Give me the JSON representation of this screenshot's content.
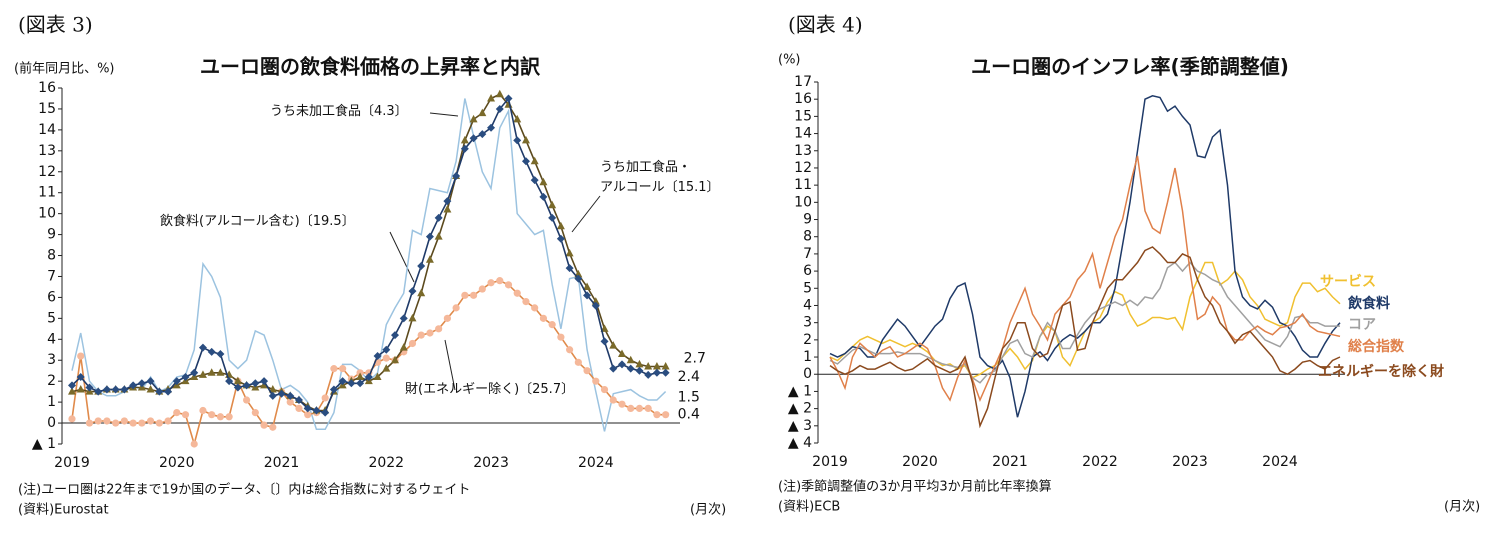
{
  "chart_data": [
    {
      "type": "line",
      "figure_label": "(図表 3)",
      "title": "ユーロ圏の飲食料価格の上昇率と内訳",
      "y_label": "(前年同月比、%)",
      "note": "(注)ユーロ圏は22年まで19か国のデータ、〔〕内は総合指数に対するウェイト",
      "source": "(資料)Eurostat",
      "frequency": "(月次)",
      "categories": [
        "2019",
        null,
        null,
        null,
        null,
        null,
        null,
        null,
        null,
        null,
        null,
        null,
        "2020",
        null,
        null,
        null,
        null,
        null,
        null,
        null,
        null,
        null,
        null,
        null,
        "2021",
        null,
        null,
        null,
        null,
        null,
        null,
        null,
        null,
        null,
        null,
        null,
        "2022",
        null,
        null,
        null,
        null,
        null,
        null,
        null,
        null,
        null,
        null,
        null,
        "2023",
        null,
        null,
        null,
        null,
        null,
        null,
        null,
        null,
        null,
        null,
        null,
        "2024",
        null,
        null,
        null,
        null,
        null,
        null,
        null,
        null
      ],
      "ylim": [
        -1,
        16
      ],
      "yticks": [
        {
          "value": -1,
          "label": "▲ 1"
        },
        0,
        1,
        2,
        3,
        4,
        5,
        6,
        7,
        8,
        9,
        10,
        11,
        12,
        13,
        14,
        15,
        16
      ],
      "grid": false,
      "series": [
        {
          "name": "うち未加工食品〔4.3〕",
          "color": "#9cc3e0",
          "marker": null,
          "show_last_value": true,
          "values": [
            2.5,
            4.3,
            2.0,
            1.5,
            1.3,
            1.3,
            1.5,
            1.8,
            1.6,
            2.2,
            1.5,
            1.7,
            2.2,
            2.3,
            3.5,
            7.6,
            7.0,
            6.0,
            3.0,
            2.6,
            3.0,
            4.4,
            4.2,
            3.0,
            1.6,
            1.8,
            1.5,
            1.0,
            -0.3,
            -0.3,
            0.5,
            2.8,
            2.8,
            2.5,
            2.0,
            2.4,
            4.7,
            5.5,
            6.2,
            9.2,
            9.0,
            11.2,
            11.1,
            11.0,
            12.5,
            15.5,
            13.7,
            12.0,
            11.2,
            14.1,
            14.9,
            10.0,
            9.5,
            9.0,
            9.2,
            6.6,
            4.5,
            6.9,
            7.0,
            3.5,
            1.5,
            -0.4,
            1.4,
            1.5,
            1.6,
            1.3,
            1.1,
            1.1,
            1.5
          ]
        },
        {
          "name": "財(エネルギー除く)〔25.7〕",
          "color": "#e08a4a",
          "marker": "circle",
          "marker_color": "#f5b89a",
          "show_last_value": true,
          "values": [
            0.2,
            3.2,
            0.0,
            0.1,
            0.1,
            0.0,
            0.1,
            0.0,
            0.0,
            0.1,
            0.0,
            0.1,
            0.5,
            0.4,
            -1.0,
            0.6,
            0.4,
            0.3,
            0.3,
            2.0,
            1.1,
            0.5,
            -0.1,
            -0.2,
            1.5,
            1.0,
            0.7,
            0.4,
            0.5,
            1.2,
            2.6,
            2.6,
            2.1,
            2.4,
            2.4,
            2.9,
            3.1,
            3.0,
            3.4,
            3.8,
            4.2,
            4.3,
            4.5,
            5.0,
            5.5,
            6.1,
            6.1,
            6.4,
            6.7,
            6.8,
            6.6,
            6.2,
            5.8,
            5.5,
            5.0,
            4.7,
            4.1,
            3.5,
            2.9,
            2.5,
            2.0,
            1.6,
            1.1,
            0.9,
            0.7,
            0.7,
            0.7,
            0.4,
            0.4
          ]
        },
        {
          "name": "うち加工食品・\nアルコール〔15.1〕",
          "color": "#5c4a1e",
          "marker": "triangle",
          "marker_color": "#7a6a2a",
          "show_last_value": true,
          "values": [
            1.5,
            1.6,
            1.5,
            1.5,
            1.6,
            1.6,
            1.6,
            1.7,
            1.7,
            1.6,
            1.5,
            1.6,
            1.8,
            2.0,
            2.2,
            2.3,
            2.4,
            2.4,
            2.3,
            2.0,
            1.8,
            1.7,
            1.8,
            1.6,
            1.5,
            1.3,
            1.1,
            0.8,
            0.6,
            0.6,
            1.5,
            1.8,
            2.0,
            2.2,
            2.0,
            2.2,
            2.6,
            3.0,
            3.6,
            5.0,
            6.2,
            7.8,
            8.9,
            10.2,
            11.8,
            13.5,
            14.5,
            14.8,
            15.5,
            15.7,
            15.2,
            14.5,
            13.5,
            12.5,
            11.5,
            10.4,
            9.4,
            8.1,
            7.1,
            6.5,
            5.8,
            4.5,
            3.7,
            3.3,
            3.0,
            2.8,
            2.7,
            2.7,
            2.7
          ]
        },
        {
          "name": "飲食料(アルコール含む)〔19.5〕",
          "color": "#1f3a68",
          "marker": "diamond",
          "marker_color": "#2a4d80",
          "show_last_value": true,
          "values": [
            1.8,
            2.2,
            1.7,
            1.5,
            1.6,
            1.6,
            1.6,
            1.8,
            1.9,
            2.0,
            1.5,
            1.5,
            2.0,
            2.2,
            2.4,
            3.6,
            3.4,
            3.3,
            2.0,
            1.7,
            1.8,
            1.9,
            2.0,
            1.3,
            1.4,
            1.3,
            1.1,
            0.7,
            0.6,
            0.5,
            1.6,
            2.0,
            1.9,
            1.9,
            2.2,
            3.2,
            3.5,
            4.2,
            5.0,
            6.3,
            7.5,
            8.9,
            9.8,
            10.6,
            11.8,
            13.1,
            13.6,
            13.8,
            14.1,
            15.0,
            15.5,
            13.5,
            12.5,
            11.6,
            10.8,
            9.8,
            8.8,
            7.4,
            6.9,
            6.1,
            5.6,
            3.9,
            2.6,
            2.8,
            2.6,
            2.5,
            2.3,
            2.4,
            2.4
          ]
        }
      ]
    },
    {
      "type": "line",
      "figure_label": "(図表 4)",
      "title": "ユーロ圏のインフレ率(季節調整値)",
      "y_label": "(%)",
      "note": "(注)季節調整値の3か月平均3か月前比年率換算",
      "source": "(資料)ECB",
      "frequency": "(月次)",
      "categories": [
        "2019",
        null,
        null,
        null,
        null,
        null,
        null,
        null,
        null,
        null,
        null,
        null,
        "2020",
        null,
        null,
        null,
        null,
        null,
        null,
        null,
        null,
        null,
        null,
        null,
        "2021",
        null,
        null,
        null,
        null,
        null,
        null,
        null,
        null,
        null,
        null,
        null,
        "2022",
        null,
        null,
        null,
        null,
        null,
        null,
        null,
        null,
        null,
        null,
        null,
        "2023",
        null,
        null,
        null,
        null,
        null,
        null,
        null,
        null,
        null,
        null,
        null,
        "2024",
        null,
        null,
        null,
        null,
        null,
        null,
        null,
        null
      ],
      "ylim": [
        -4,
        17
      ],
      "yticks": [
        {
          "value": -4,
          "label": "▲ 4"
        },
        {
          "value": -3,
          "label": "▲ 3"
        },
        {
          "value": -2,
          "label": "▲ 2"
        },
        {
          "value": -1,
          "label": "▲ 1"
        },
        0,
        1,
        2,
        3,
        4,
        5,
        6,
        7,
        8,
        9,
        10,
        11,
        12,
        13,
        14,
        15,
        16,
        17
      ],
      "grid": false,
      "series": [
        {
          "name": "サービス",
          "color": "#f0c030",
          "marker": null,
          "values": [
            1.0,
            0.8,
            1.2,
            1.6,
            2.0,
            2.2,
            2.0,
            1.8,
            2.0,
            1.8,
            1.6,
            1.8,
            1.6,
            1.3,
            0.8,
            0.5,
            0.6,
            0.3,
            0.5,
            -0.2,
            0.0,
            0.3,
            0.5,
            1.0,
            1.5,
            1.0,
            0.3,
            0.8,
            2.2,
            2.8,
            2.5,
            1.0,
            0.5,
            1.5,
            2.5,
            3.0,
            3.3,
            4.2,
            4.8,
            4.6,
            3.5,
            2.8,
            3.0,
            3.3,
            3.3,
            3.2,
            3.3,
            2.6,
            4.5,
            5.5,
            6.5,
            6.5,
            5.2,
            5.5,
            6.0,
            5.5,
            4.5,
            4.0,
            3.2,
            3.0,
            2.8,
            3.0,
            4.5,
            5.3,
            5.3,
            4.8,
            5.0,
            4.5,
            4.1
          ]
        },
        {
          "name": "飲食料",
          "color": "#1f3a68",
          "marker": null,
          "values": [
            1.2,
            1.0,
            1.2,
            1.6,
            1.5,
            1.0,
            1.0,
            2.0,
            2.6,
            3.2,
            2.8,
            2.2,
            1.6,
            2.2,
            2.8,
            3.2,
            4.4,
            5.1,
            5.3,
            3.5,
            1.0,
            0.5,
            0.3,
            0.8,
            -0.2,
            -2.5,
            -1.0,
            1.0,
            1.3,
            0.8,
            1.5,
            2.0,
            2.3,
            2.1,
            2.5,
            3.0,
            3.0,
            3.5,
            5.0,
            7.5,
            10.0,
            13.0,
            16.0,
            16.2,
            16.1,
            15.3,
            15.6,
            15.0,
            14.5,
            12.7,
            12.6,
            13.8,
            14.2,
            11.0,
            6.0,
            4.5,
            4.0,
            3.8,
            4.3,
            3.9,
            3.0,
            2.8,
            2.2,
            1.4,
            1.0,
            1.0,
            1.8,
            2.5,
            3.0
          ]
        },
        {
          "name": "コア",
          "color": "#a0a0a0",
          "marker": null,
          "values": [
            0.8,
            0.6,
            1.0,
            1.4,
            1.6,
            1.4,
            1.2,
            1.2,
            1.2,
            1.3,
            1.2,
            1.2,
            1.2,
            1.0,
            0.8,
            0.6,
            0.5,
            0.4,
            0.6,
            -0.2,
            -0.5,
            0.0,
            0.2,
            1.0,
            1.8,
            2.0,
            1.2,
            1.0,
            2.2,
            3.0,
            2.5,
            1.5,
            1.5,
            2.3,
            3.0,
            3.5,
            3.8,
            4.0,
            4.2,
            4.0,
            4.3,
            4.0,
            4.5,
            4.4,
            5.0,
            6.2,
            6.5,
            6.0,
            6.5,
            6.0,
            5.8,
            5.5,
            5.3,
            4.5,
            4.0,
            3.5,
            3.0,
            2.5,
            2.0,
            1.8,
            1.6,
            2.2,
            3.3,
            3.4,
            3.0,
            3.0,
            2.8,
            2.8,
            2.8
          ]
        },
        {
          "name": "総合指数",
          "color": "#e0804a",
          "marker": null,
          "values": [
            1.0,
            0.2,
            -0.8,
            1.0,
            1.8,
            1.4,
            1.0,
            1.4,
            1.6,
            1.0,
            1.2,
            1.5,
            1.8,
            1.5,
            0.5,
            -0.8,
            -1.5,
            -0.2,
            0.8,
            -0.3,
            -1.5,
            -0.5,
            0.5,
            1.5,
            3.0,
            4.0,
            5.0,
            3.5,
            2.8,
            2.0,
            3.5,
            4.0,
            4.5,
            5.5,
            6.0,
            7.0,
            5.0,
            6.5,
            8.0,
            9.0,
            11.0,
            12.7,
            9.5,
            8.5,
            8.2,
            10.0,
            12.0,
            9.5,
            6.0,
            3.2,
            3.5,
            4.5,
            4.0,
            2.5,
            2.0,
            2.0,
            2.5,
            2.8,
            2.5,
            2.3,
            2.7,
            2.8,
            3.0,
            3.5,
            2.8,
            2.5,
            2.4,
            2.3,
            2.2
          ]
        },
        {
          "name": "エネルギーを除く財",
          "color": "#8b4a1e",
          "marker": null,
          "values": [
            0.5,
            0.2,
            0.0,
            0.2,
            0.5,
            0.3,
            0.3,
            0.5,
            0.7,
            0.4,
            0.2,
            0.3,
            0.6,
            0.9,
            0.5,
            0.3,
            0.1,
            0.3,
            1.0,
            -0.5,
            -3.0,
            -2.0,
            -0.2,
            1.5,
            2.0,
            3.0,
            3.0,
            1.5,
            1.0,
            1.2,
            2.5,
            4.0,
            4.2,
            1.4,
            1.5,
            3.0,
            4.0,
            5.0,
            5.5,
            5.5,
            6.0,
            6.5,
            7.2,
            7.4,
            7.0,
            6.5,
            6.5,
            7.0,
            6.8,
            5.5,
            4.5,
            4.0,
            3.0,
            2.5,
            1.8,
            2.3,
            2.5,
            2.0,
            1.5,
            1.0,
            0.2,
            0.0,
            0.3,
            0.7,
            0.8,
            0.5,
            0.3,
            0.8,
            1.0
          ]
        }
      ]
    }
  ]
}
